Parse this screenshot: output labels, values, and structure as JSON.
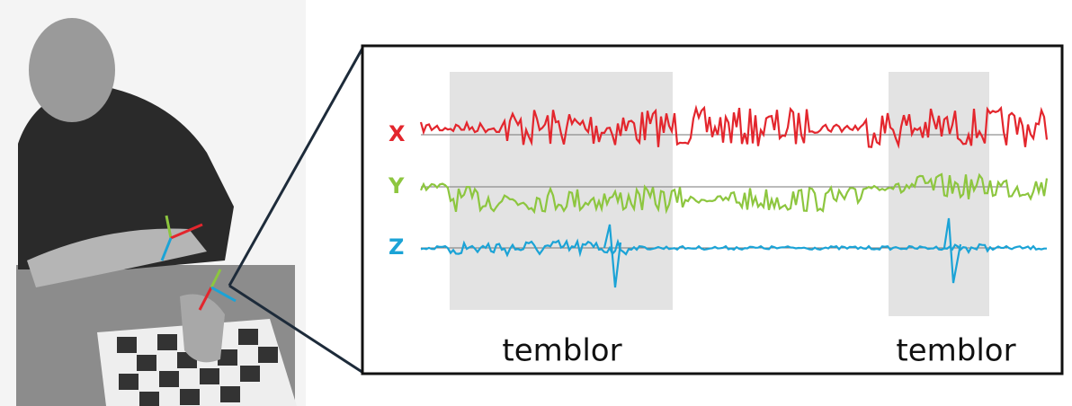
{
  "signals": [
    {
      "label": "X",
      "color": "#e3262d"
    },
    {
      "label": "Y",
      "color": "#8dc63f"
    },
    {
      "label": "Z",
      "color": "#1ba3d6"
    }
  ],
  "regions": [
    {
      "label": "temblor"
    },
    {
      "label": "temblor"
    }
  ]
}
